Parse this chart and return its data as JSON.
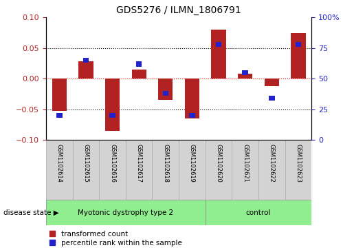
{
  "title": "GDS5276 / ILMN_1806791",
  "samples": [
    "GSM1102614",
    "GSM1102615",
    "GSM1102616",
    "GSM1102617",
    "GSM1102618",
    "GSM1102619",
    "GSM1102620",
    "GSM1102621",
    "GSM1102622",
    "GSM1102623"
  ],
  "red_values": [
    -0.052,
    0.028,
    -0.085,
    0.015,
    -0.035,
    -0.065,
    0.08,
    0.008,
    -0.012,
    0.075
  ],
  "blue_values_pct": [
    20,
    65,
    20,
    62,
    38,
    20,
    78,
    55,
    34,
    78
  ],
  "disease_groups": [
    {
      "label": "Myotonic dystrophy type 2",
      "start": 0,
      "end": 6,
      "color": "#90ee90"
    },
    {
      "label": "control",
      "start": 6,
      "end": 10,
      "color": "#90ee90"
    }
  ],
  "red_color": "#b22222",
  "blue_color": "#2222cc",
  "ylim": [
    -0.1,
    0.1
  ],
  "yticks_left": [
    -0.1,
    -0.05,
    0,
    0.05,
    0.1
  ],
  "yticks_right": [
    0,
    25,
    50,
    75,
    100
  ],
  "label_red": "transformed count",
  "label_blue": "percentile rank within the sample",
  "disease_state_label": "disease state"
}
